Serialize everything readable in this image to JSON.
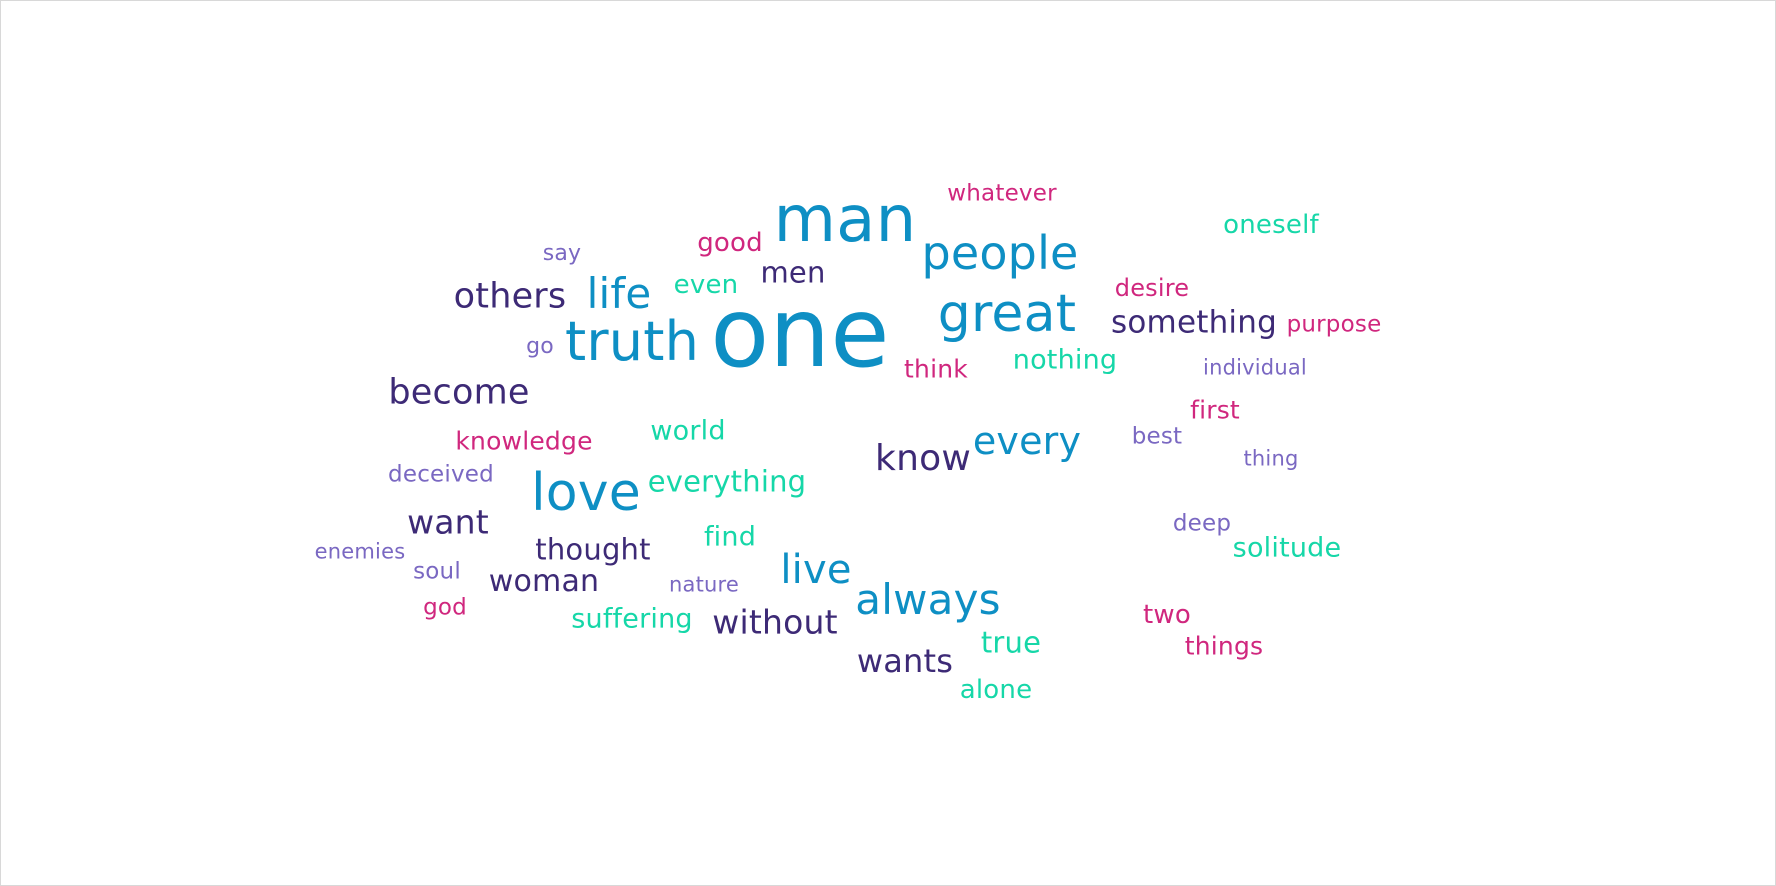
{
  "palette": {
    "blue": "#0e8fc4",
    "teal": "#16d7a8",
    "purple": "#3d2a76",
    "lavender": "#7a68c2",
    "pink": "#d0277e"
  },
  "cloud": {
    "words": [
      "one",
      "man",
      "truth",
      "great",
      "people",
      "love",
      "always",
      "life",
      "others",
      "become",
      "know",
      "every",
      "live",
      "something",
      "men",
      "want",
      "woman",
      "without",
      "wants",
      "everything",
      "thought",
      "oneself",
      "nothing",
      "solitude",
      "suffering",
      "true",
      "world",
      "alone",
      "good",
      "even",
      "find",
      "knowledge",
      "whatever",
      "desire",
      "purpose",
      "think",
      "first",
      "two",
      "things",
      "god",
      "say",
      "go",
      "individual",
      "best",
      "thing",
      "deep",
      "deceived",
      "enemies",
      "soul",
      "nature"
    ]
  }
}
